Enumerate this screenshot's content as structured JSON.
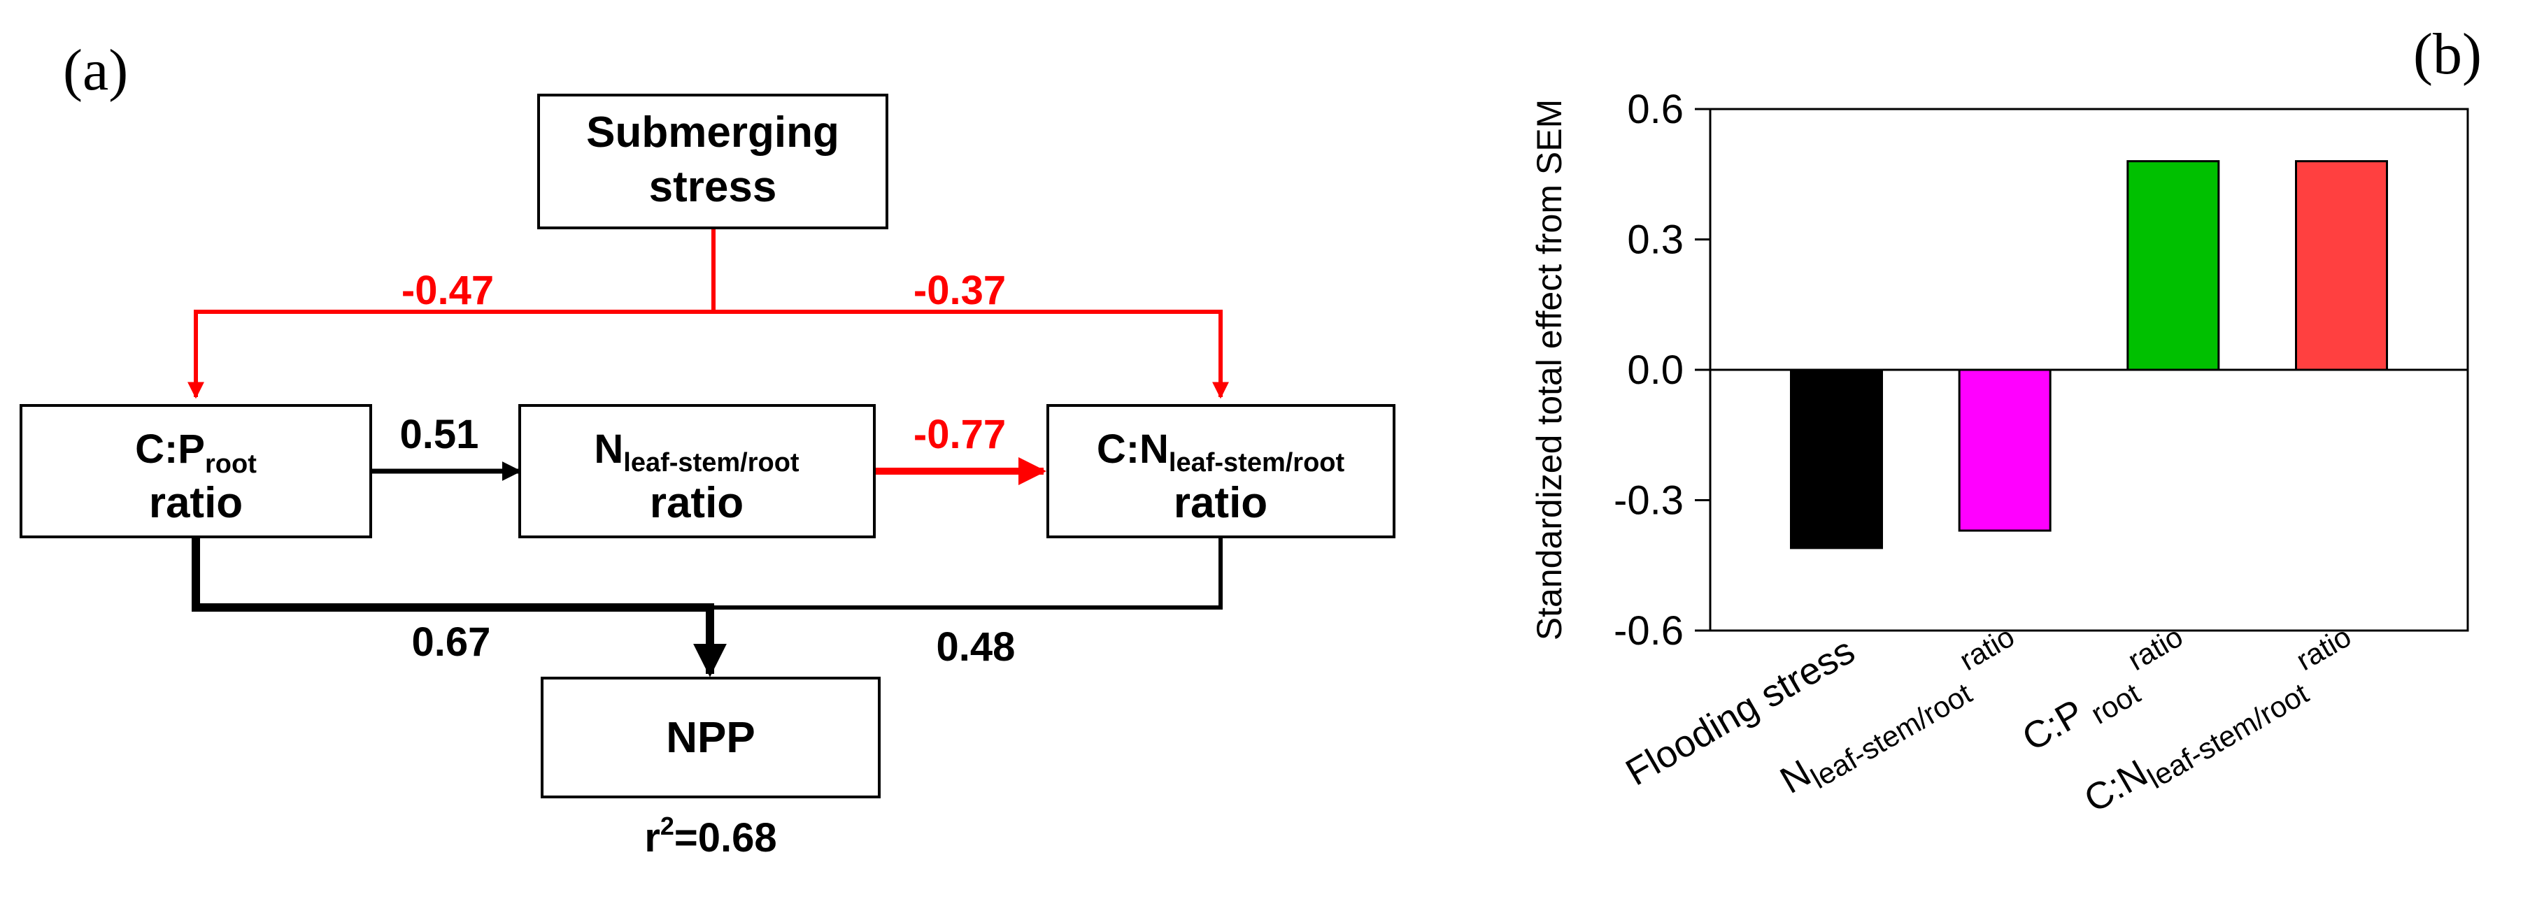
{
  "panel_a": {
    "label": "(a)",
    "nodes": {
      "stress": {
        "line1": "Submerging",
        "line2": "stress"
      },
      "cp": {
        "main": "C:P",
        "sub": "root",
        "line2": "ratio"
      },
      "n": {
        "main": "N",
        "sub": "leaf-stem/root",
        "line2": "ratio"
      },
      "cn": {
        "main": "C:N",
        "sub": "leaf-stem/root",
        "line2": "ratio"
      },
      "npp": {
        "label": "NPP"
      }
    },
    "paths": {
      "stress_cp": "-0.47",
      "stress_cn": "-0.37",
      "cp_n": "0.51",
      "n_cn": "-0.77",
      "cp_npp": "0.67",
      "cn_npp": "0.48"
    },
    "r2": {
      "prefix": "r",
      "sup": "2",
      "value": "=0.68"
    },
    "colors": {
      "negative": "#ff0000",
      "positive": "#000000"
    }
  },
  "panel_b": {
    "label": "(b)"
  },
  "chart_data": {
    "type": "bar",
    "title": "",
    "ylabel": "Standardized total effect from SEM",
    "xlabel": "",
    "ylim": [
      -0.6,
      0.6
    ],
    "yticks": [
      "-0.6",
      "-0.3",
      "0.0",
      "0.3",
      "0.6"
    ],
    "ytick_values": [
      -0.6,
      -0.3,
      0.0,
      0.3,
      0.6
    ],
    "categories": [
      {
        "main": "Flooding stress",
        "sub": "",
        "tail": ""
      },
      {
        "main": "N",
        "sub": "leaf-stem/root",
        "tail": " ratio"
      },
      {
        "main": "C:P",
        "sub": " root",
        "tail": " ratio"
      },
      {
        "main": "C:N",
        "sub": "leaf-stem/root",
        "tail": " ratio"
      }
    ],
    "values": [
      -0.41,
      -0.37,
      0.48,
      0.48
    ],
    "colors": [
      "#000000",
      "#ff00ff",
      "#00c000",
      "#ff4040"
    ]
  }
}
